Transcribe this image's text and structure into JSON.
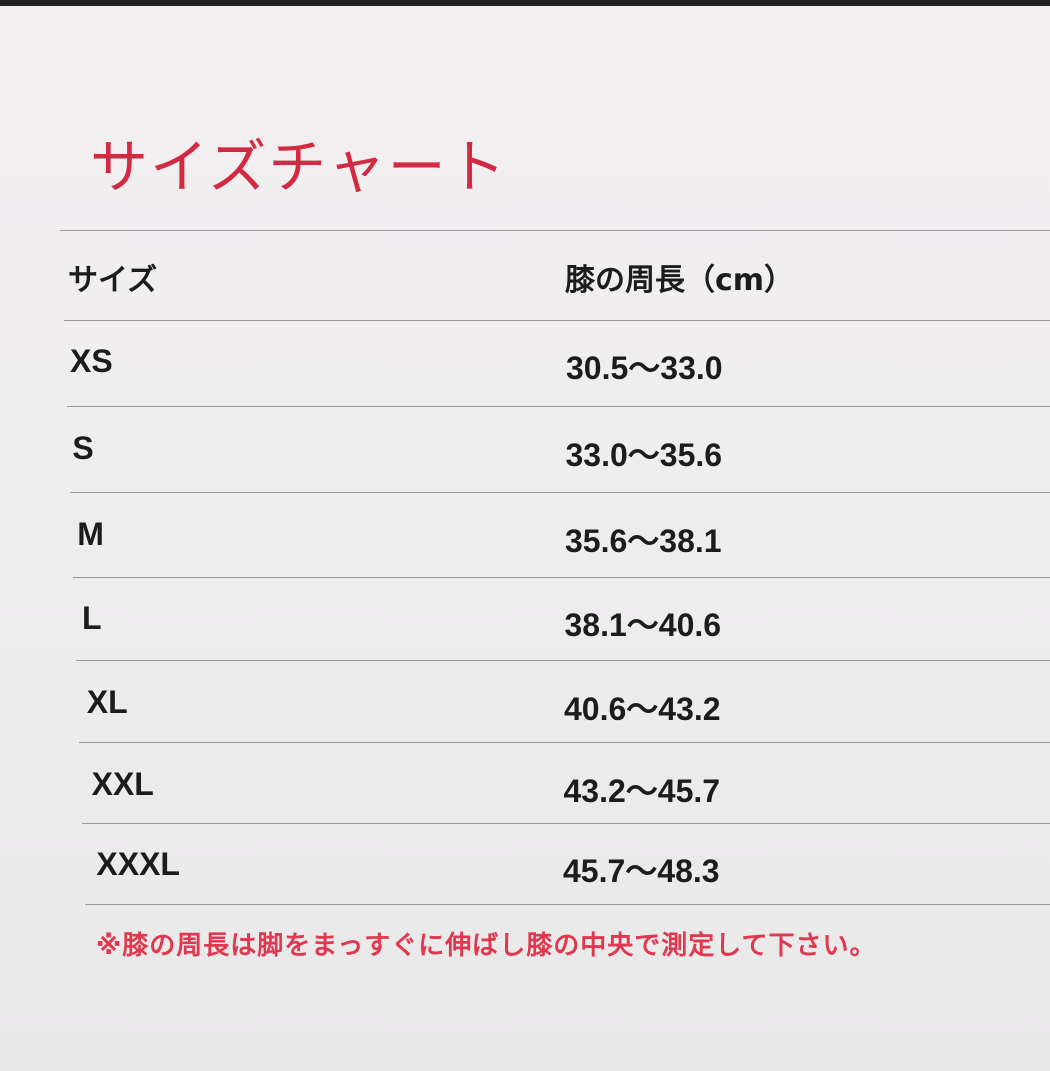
{
  "title": "サイズチャート",
  "table": {
    "headers": [
      "サイズ",
      "膝の周長（cm）"
    ],
    "rows": [
      {
        "size": "XS",
        "range": "30.5〜33.0"
      },
      {
        "size": "S",
        "range": "33.0〜35.6"
      },
      {
        "size": "M",
        "range": "35.6〜38.1"
      },
      {
        "size": "L",
        "range": "38.1〜40.6"
      },
      {
        "size": "XL",
        "range": "40.6〜43.2"
      },
      {
        "size": "XXL",
        "range": "43.2〜45.7"
      },
      {
        "size": "XXXL",
        "range": "45.7〜48.3"
      }
    ]
  },
  "note": "※膝の周長は脚をまっすぐに伸ばし膝の中央で測定して下さい。",
  "colors": {
    "accent": "#d12a42",
    "note": "#e0394f"
  }
}
